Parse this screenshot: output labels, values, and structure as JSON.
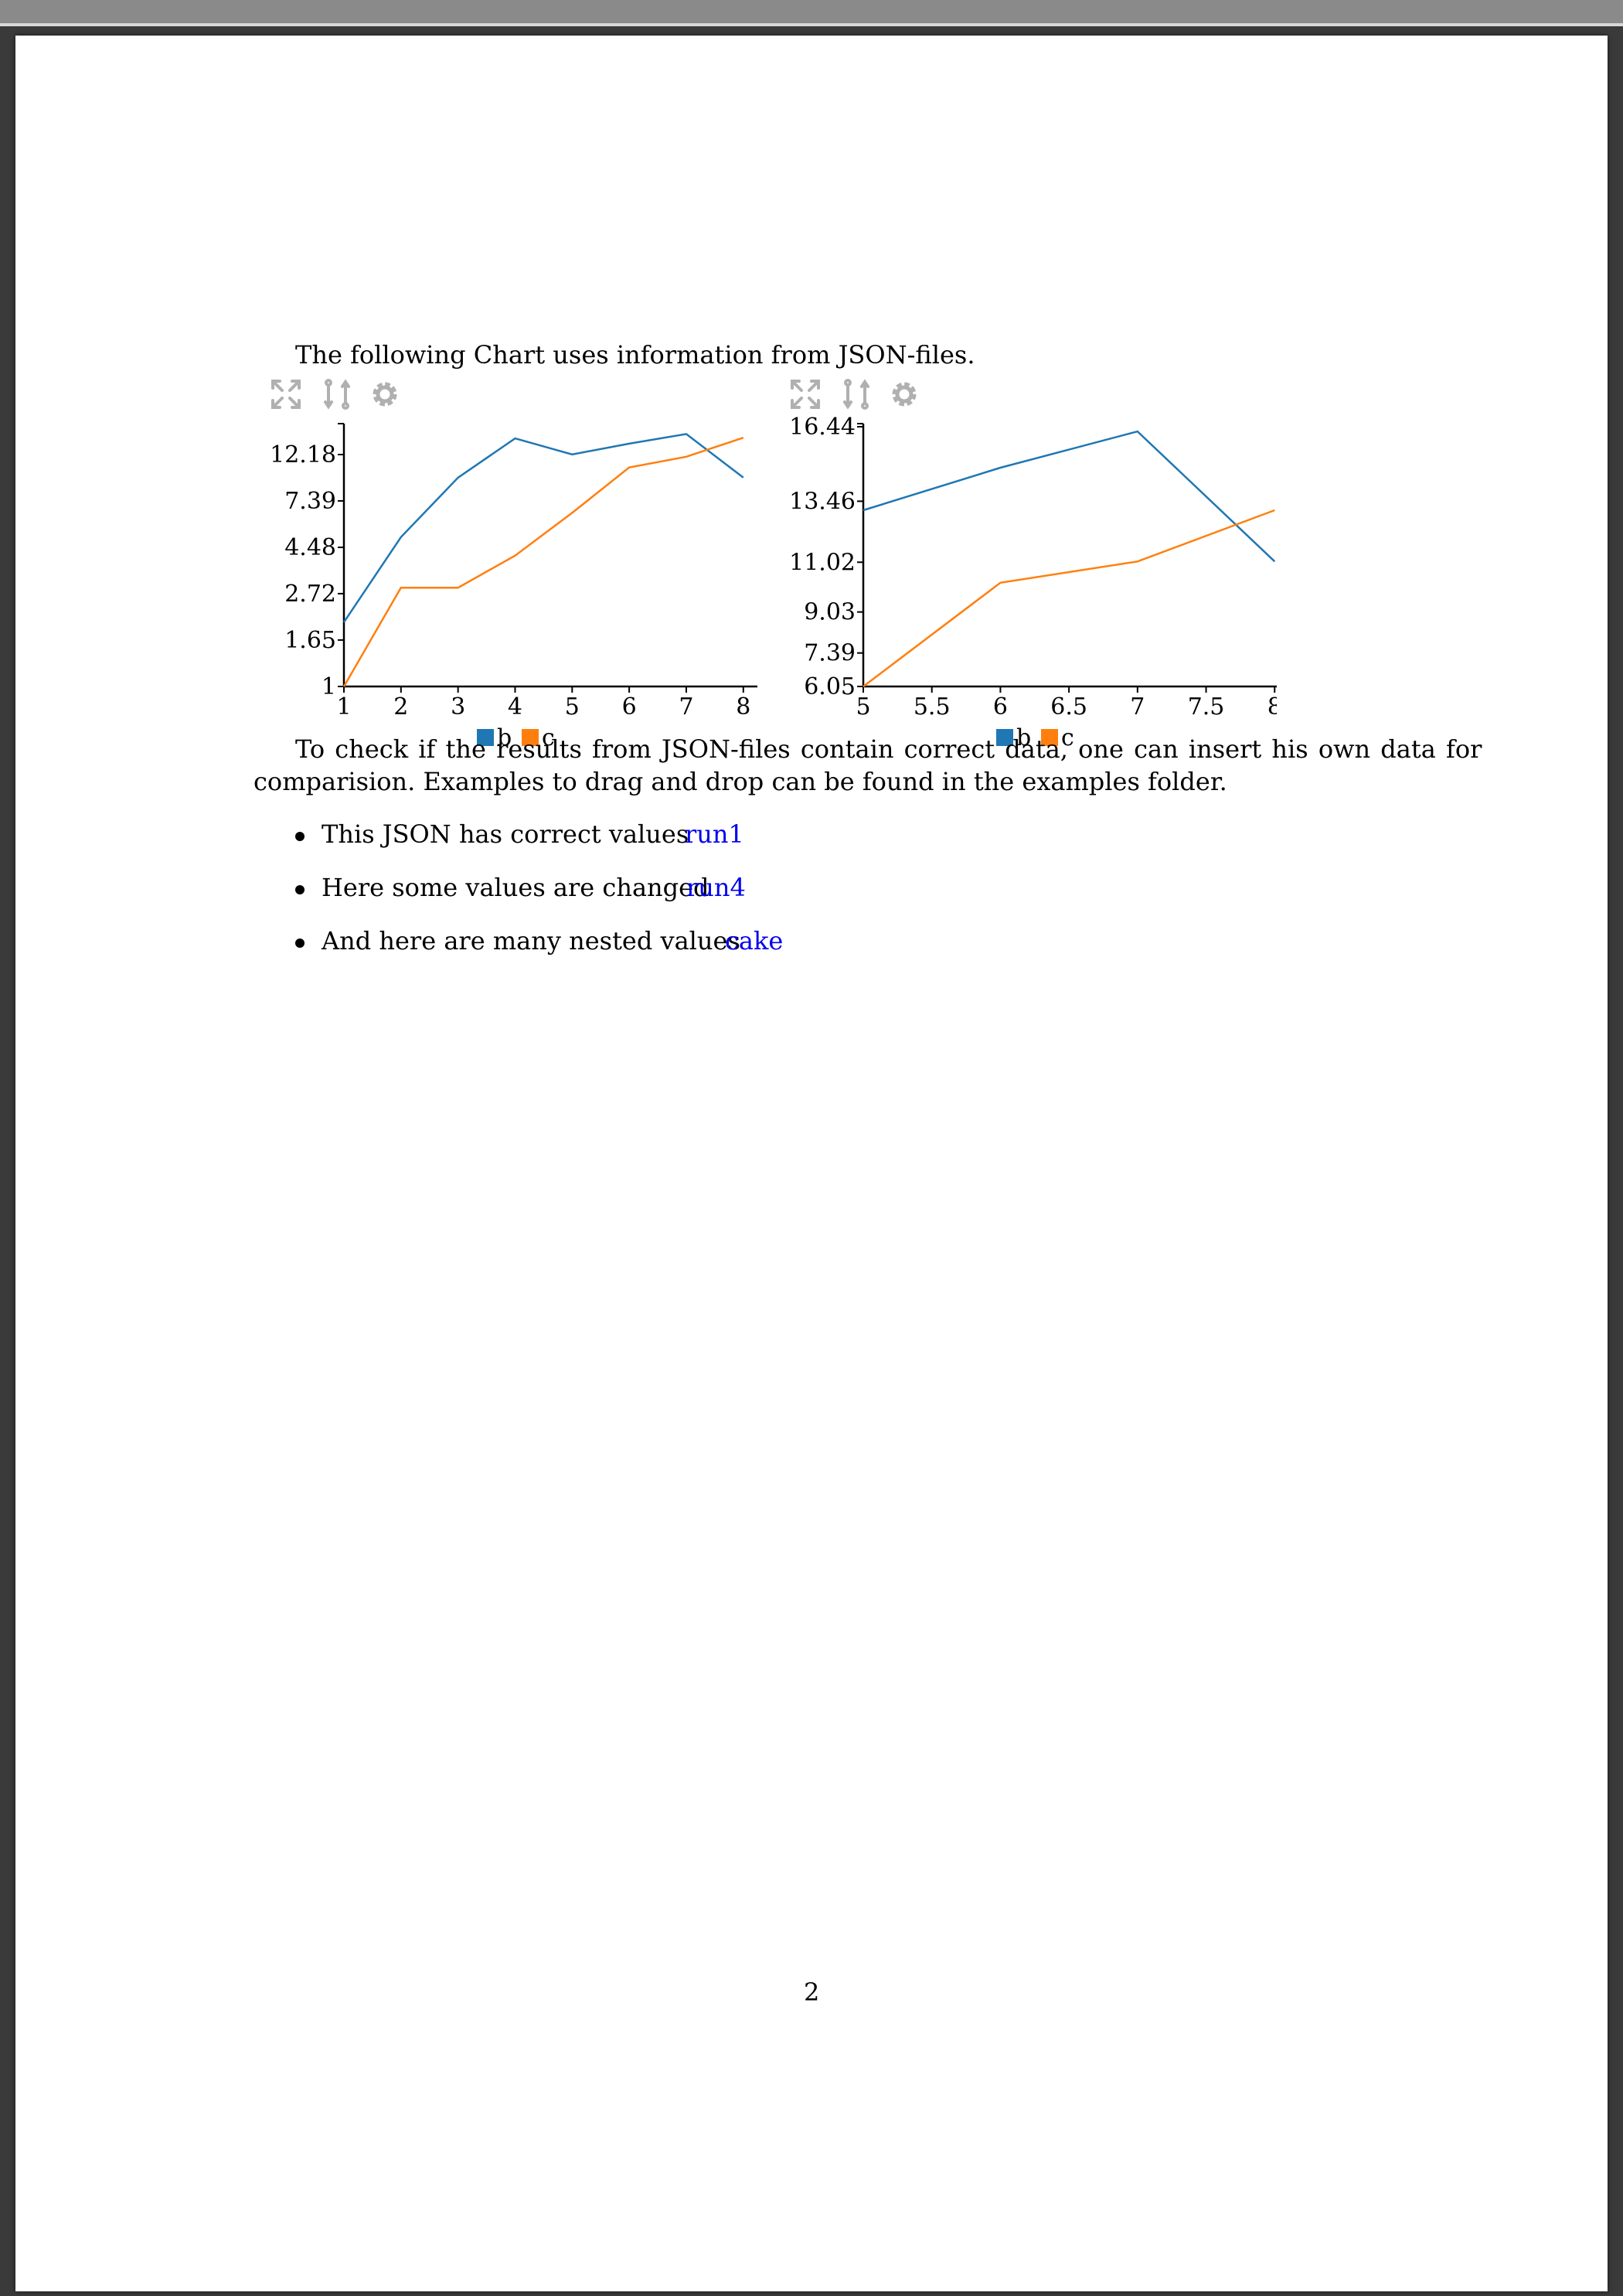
{
  "intro_text": "The following Chart uses information from JSON-files.",
  "paragraph": {
    "line1": "To check if the results from JSON-files contain correct data, one can insert his own data for",
    "line2": "comparision. Examples to drag and drop can be found in the examples folder."
  },
  "list": [
    {
      "text": "This JSON has correct values",
      "link": "run1"
    },
    {
      "text": "Here some values are changed",
      "link": "run4"
    },
    {
      "text": "And here are many nested values",
      "link": "cake"
    }
  ],
  "page_number": "2",
  "toolbar_icons": [
    "expand-icon",
    "compare-icon",
    "gear-icon"
  ],
  "colors": {
    "series_b": "#1f77b4",
    "series_c": "#ff7f0e",
    "toolbar": "#b0b0b0",
    "link": "#0000ee"
  },
  "chart_data": [
    {
      "type": "line",
      "y_scale": "log",
      "x_ticks": [
        "1",
        "2",
        "3",
        "4",
        "5",
        "6",
        "7",
        "8"
      ],
      "y_ticks": [
        "1",
        "1.65",
        "2.72",
        "4.48",
        "7.39",
        "12.18"
      ],
      "xlim": [
        1,
        8.45
      ],
      "ylim": [
        1,
        16.44
      ],
      "legend": "bottom-center",
      "grid": false,
      "series": [
        {
          "name": "b",
          "color": "#1f77b4",
          "x": [
            1,
            2,
            3,
            4,
            5,
            6,
            7,
            8
          ],
          "y": [
            2.0,
            5.0,
            9.5,
            14.5,
            12.2,
            13.7,
            15.2,
            9.5
          ]
        },
        {
          "name": "c",
          "color": "#ff7f0e",
          "x": [
            1,
            2,
            3,
            4,
            5,
            6,
            7,
            8
          ],
          "y": [
            1.0,
            2.9,
            2.9,
            4.1,
            6.5,
            10.6,
            11.9,
            14.6
          ]
        }
      ]
    },
    {
      "type": "line",
      "y_scale": "linear",
      "x_ticks": [
        "5",
        "5.5",
        "6",
        "6.5",
        "7",
        "7.5",
        "8"
      ],
      "y_ticks": [
        "6.05",
        "7.39",
        "9.03",
        "11.02",
        "13.46",
        "16.44"
      ],
      "xlim": [
        5,
        8.1
      ],
      "ylim": [
        6.05,
        16.44
      ],
      "legend": "bottom-center",
      "grid": false,
      "series": [
        {
          "name": "b",
          "color": "#1f77b4",
          "x": [
            5,
            6,
            7,
            8
          ],
          "y": [
            13.1,
            14.8,
            16.25,
            11.05
          ]
        },
        {
          "name": "c",
          "color": "#ff7f0e",
          "x": [
            5,
            6,
            7,
            8
          ],
          "y": [
            6.05,
            10.2,
            11.05,
            13.1
          ]
        }
      ]
    }
  ]
}
